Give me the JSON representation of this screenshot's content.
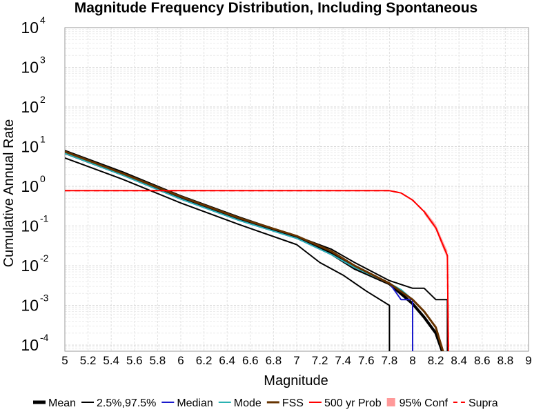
{
  "chart_data": {
    "type": "line",
    "title": "Magnitude Frequency Distribution, Including Spontaneous",
    "xlabel": "Magnitude",
    "ylabel": "Cumulative Annual Rate",
    "xlim": [
      5,
      9
    ],
    "ylim": [
      7e-05,
      10000
    ],
    "yscale": "log",
    "grid": true,
    "x_ticks": [
      5,
      5.2,
      5.4,
      5.6,
      5.8,
      6,
      6.2,
      6.4,
      6.6,
      6.8,
      7,
      7.2,
      7.4,
      7.6,
      7.8,
      8,
      8.2,
      8.4,
      8.6,
      8.8,
      9
    ],
    "x_tick_labels": [
      "5",
      "5.2",
      "5.4",
      "5.6",
      "5.8",
      "6",
      "6.2",
      "6.4",
      "6.6",
      "6.8",
      "7",
      "7.2",
      "7.4",
      "7.6",
      "7.8",
      "8",
      "8.2",
      "8.4",
      "8.6",
      "8.8",
      "9"
    ],
    "y_ticks": [
      {
        "value": 10000,
        "base": "10",
        "exp": "4"
      },
      {
        "value": 1000,
        "base": "10",
        "exp": "3"
      },
      {
        "value": 100,
        "base": "10",
        "exp": "2"
      },
      {
        "value": 10,
        "base": "10",
        "exp": "1"
      },
      {
        "value": 1,
        "base": "10",
        "exp": "0"
      },
      {
        "value": 0.1,
        "base": "10",
        "exp": "-1"
      },
      {
        "value": 0.01,
        "base": "10",
        "exp": "-2"
      },
      {
        "value": 0.001,
        "base": "10",
        "exp": "-3"
      },
      {
        "value": 0.0001,
        "base": "10",
        "exp": "-4"
      }
    ],
    "legend_position": "bottom",
    "series": [
      {
        "name": "Mean",
        "color": "#000000",
        "width": 4,
        "dash": "",
        "x": [
          5.0,
          5.5,
          6.0,
          6.5,
          7.0,
          7.3,
          7.5,
          7.8,
          8.0,
          8.1,
          8.2,
          8.3
        ],
        "y": [
          7.0,
          2.0,
          0.5,
          0.15,
          0.052,
          0.02,
          0.0085,
          0.0035,
          0.0011,
          0.0005,
          0.0002,
          3e-05
        ]
      },
      {
        "name": "2.5%,97.5%",
        "color": "#000000",
        "width": 2,
        "dash": "",
        "x": [
          5.0,
          5.5,
          6.0,
          6.5,
          7.0,
          7.2,
          7.4,
          7.6,
          7.8,
          7.8
        ],
        "y": [
          5.2,
          1.5,
          0.38,
          0.11,
          0.034,
          0.012,
          0.0058,
          0.0023,
          0.001,
          3e-05
        ]
      },
      {
        "name": "2.5%,97.5%",
        "color": "#000000",
        "width": 2,
        "dash": "",
        "x": [
          5.0,
          5.5,
          6.0,
          6.5,
          7.0,
          7.3,
          7.5,
          7.8,
          8.0,
          8.1,
          8.2,
          8.3,
          8.3
        ],
        "y": [
          8.0,
          2.3,
          0.58,
          0.17,
          0.055,
          0.026,
          0.012,
          0.0042,
          0.0027,
          0.0027,
          0.0014,
          0.0014,
          3e-05
        ]
      },
      {
        "name": "Median",
        "color": "#1a1acc",
        "width": 2,
        "dash": "",
        "x": [
          5.0,
          5.5,
          6.0,
          6.5,
          7.0,
          7.3,
          7.5,
          7.8,
          7.9,
          8.0,
          8.0
        ],
        "y": [
          6.8,
          1.9,
          0.48,
          0.14,
          0.049,
          0.019,
          0.009,
          0.0036,
          0.0014,
          0.0014,
          3e-05
        ]
      },
      {
        "name": "Mode",
        "color": "#2ab2b2",
        "width": 2,
        "dash": "",
        "x": [
          5.0,
          5.5,
          6.0,
          6.5,
          7.0,
          7.3,
          7.5,
          7.8,
          7.9,
          8.0
        ],
        "y": [
          6.8,
          1.9,
          0.48,
          0.14,
          0.049,
          0.019,
          0.009,
          0.0036,
          0.0025,
          0.0014
        ]
      },
      {
        "name": "FSS",
        "color": "#663300",
        "width": 3,
        "dash": "",
        "x": [
          5.0,
          5.5,
          6.0,
          6.5,
          7.0,
          7.3,
          7.5,
          7.8,
          8.0,
          8.1,
          8.2,
          8.3
        ],
        "y": [
          7.5,
          2.1,
          0.55,
          0.16,
          0.056,
          0.023,
          0.01,
          0.0036,
          0.0014,
          0.0007,
          0.00028,
          3e-05
        ]
      },
      {
        "name": "500 yr Prob",
        "color": "#ff0000",
        "width": 2,
        "dash": "",
        "x": [
          5.0,
          7.8,
          7.9,
          8.0,
          8.1,
          8.2,
          8.25,
          8.3,
          8.31
        ],
        "y": [
          0.78,
          0.78,
          0.68,
          0.45,
          0.23,
          0.09,
          0.04,
          0.018,
          3e-05
        ]
      },
      {
        "name": "Supra",
        "color": "#ff0000",
        "width": 2,
        "dash": "8,6",
        "x": [
          5.0,
          7.8,
          7.9,
          8.0,
          8.1,
          8.2,
          8.25,
          8.3,
          8.31
        ],
        "y": [
          0.78,
          0.78,
          0.68,
          0.45,
          0.23,
          0.09,
          0.04,
          0.018,
          3e-05
        ]
      }
    ],
    "confidence_band": {
      "name": "95% Conf",
      "color": "#ff9999",
      "x": [
        8.1,
        8.2,
        8.25,
        8.3
      ],
      "y_low": [
        0.2,
        0.08,
        0.033,
        0.015
      ],
      "y_high": [
        0.26,
        0.11,
        0.05,
        0.024
      ]
    },
    "legend": [
      {
        "label": "Mean",
        "color": "#000000",
        "width": 5,
        "dash": "",
        "kind": "line"
      },
      {
        "label": "2.5%,97.5%",
        "color": "#000000",
        "width": 2,
        "dash": "",
        "kind": "line"
      },
      {
        "label": "Median",
        "color": "#1a1acc",
        "width": 2,
        "dash": "",
        "kind": "line"
      },
      {
        "label": "Mode",
        "color": "#2ab2b2",
        "width": 2,
        "dash": "",
        "kind": "line"
      },
      {
        "label": "FSS",
        "color": "#663300",
        "width": 3,
        "dash": "",
        "kind": "line"
      },
      {
        "label": "500 yr Prob",
        "color": "#ff0000",
        "width": 2,
        "dash": "",
        "kind": "line"
      },
      {
        "label": "95% Conf",
        "color": "#ff9999",
        "width": 8,
        "dash": "",
        "kind": "box"
      },
      {
        "label": "Supra",
        "color": "#ff0000",
        "width": 2,
        "dash": "6,5",
        "kind": "line"
      }
    ]
  }
}
